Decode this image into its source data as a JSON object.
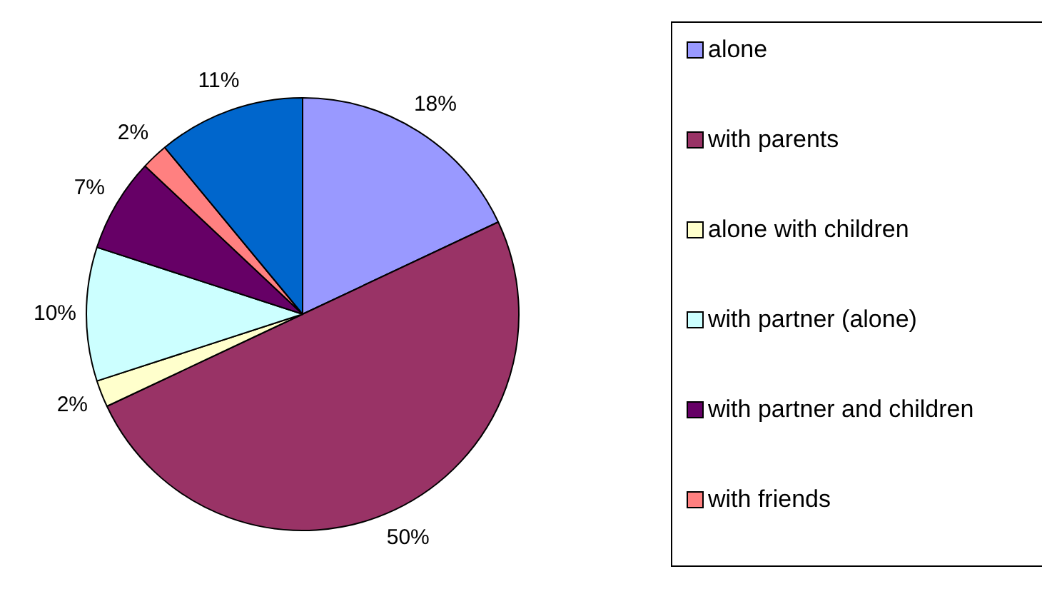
{
  "chart_data": {
    "type": "pie",
    "categories": [
      "alone",
      "with parents",
      "alone with children",
      "with partner (alone)",
      "with partner and children",
      "with friends",
      null
    ],
    "values": [
      18,
      50,
      2,
      10,
      7,
      2,
      11
    ],
    "colors": [
      "#9999ff",
      "#993366",
      "#ffffcc",
      "#ccffff",
      "#660066",
      "#ff8080",
      "#0066cc"
    ],
    "value_labels": [
      "18%",
      "50%",
      "2%",
      "10%",
      "7%",
      "2%",
      "11%"
    ],
    "legend": "right"
  }
}
